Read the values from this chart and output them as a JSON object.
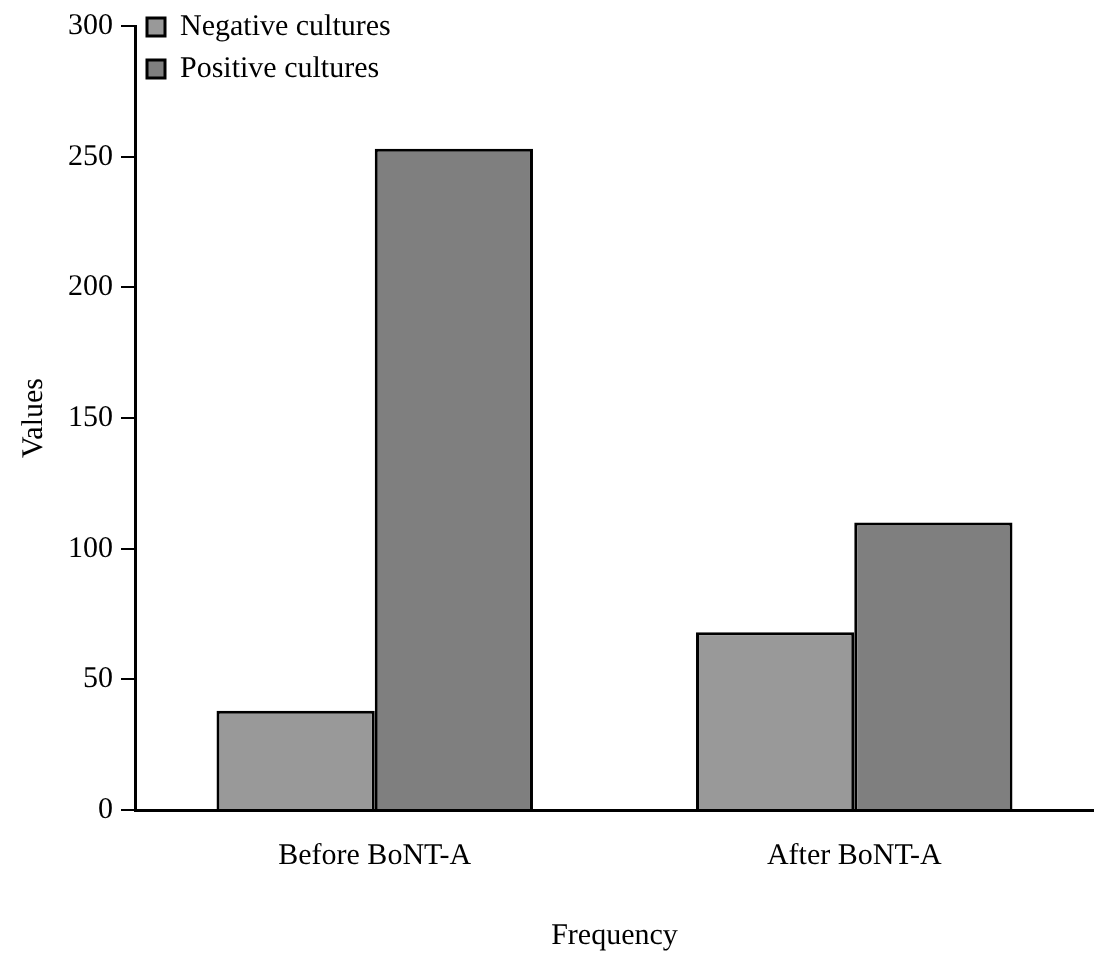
{
  "chart_data": {
    "type": "bar",
    "xlabel": "Frequency",
    "ylabel": "Values",
    "categories": [
      "Before BoNT-A",
      "After BoNT-A"
    ],
    "series": [
      {
        "name": "Negative cultures",
        "color": "#999999",
        "values": [
          38,
          68
        ]
      },
      {
        "name": "Positive cultures",
        "color": "#7f7f7f",
        "values": [
          253,
          110
        ]
      }
    ],
    "ylim": [
      0,
      300
    ],
    "yticks": [
      0,
      50,
      100,
      150,
      200,
      250,
      300
    ],
    "grid": false,
    "legend": "top left"
  }
}
